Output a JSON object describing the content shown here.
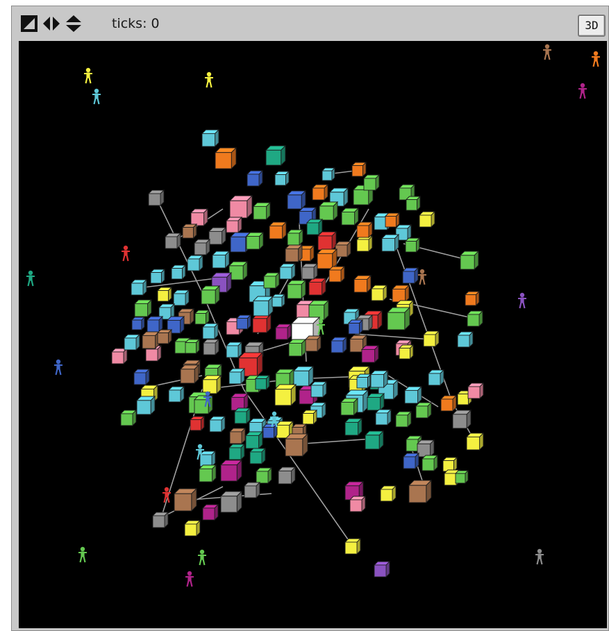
{
  "toolbar": {
    "ticks_label": "ticks: 0",
    "three_d_label": "3D",
    "icons": [
      "world-wrap-icon",
      "horizontal-arrows-icon",
      "vertical-arrows-icon"
    ]
  },
  "world": {
    "background": "#000000",
    "link_color": "#a0a0a0",
    "palette": {
      "cyan": "#5ec8d8",
      "green": "#64c850",
      "turquoise": "#1fa883",
      "orange": "#f07a1e",
      "yellow": "#f4f040",
      "blue": "#3f66c8",
      "pink": "#f08aa4",
      "gray": "#8d8d8d",
      "brown": "#a97550",
      "magenta": "#b0238a",
      "red": "#e03232",
      "violet": "#8a52c0",
      "white": "#ffffff"
    },
    "shapes": [
      "cube",
      "person"
    ]
  }
}
